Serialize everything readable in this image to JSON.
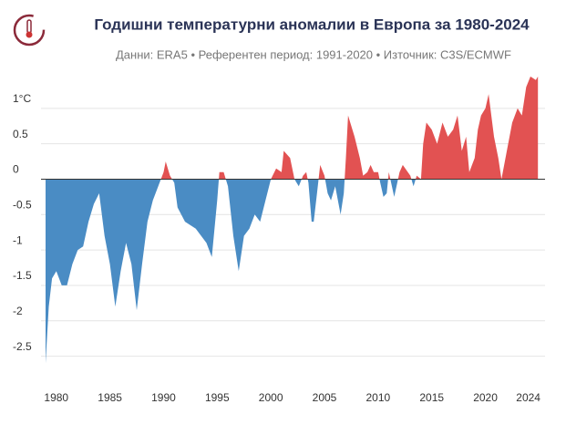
{
  "chart_data": {
    "type": "area",
    "title": "Годишни температурни аномалии в Европа за 1980-2024",
    "subtitle": "Данни: ERA5 • Референтен период: 1991-2020 • Източник: C3S/ECMWF",
    "positive_color": "#e25252",
    "negative_color": "#4a8cc4",
    "grid": true,
    "xlim": [
      1979,
      2025
    ],
    "ylim": [
      -2.75,
      1.5
    ],
    "xticks": [
      1980,
      1985,
      1990,
      1995,
      2000,
      2005,
      2010,
      2015,
      2020,
      2024
    ],
    "yticks": [
      {
        "value": 1,
        "label": "1°C"
      },
      0.5,
      0,
      -0.5,
      -1,
      -1.5,
      -2,
      -2.5
    ],
    "x": [
      1979.0,
      1979.3,
      1979.6,
      1980.0,
      1980.5,
      1981.0,
      1981.5,
      1982.0,
      1982.5,
      1983.0,
      1983.5,
      1984.0,
      1984.5,
      1985.0,
      1985.5,
      1986.0,
      1986.5,
      1987.0,
      1987.5,
      1988.0,
      1988.5,
      1989.0,
      1989.5,
      1990.0,
      1990.2,
      1990.6,
      1991.0,
      1991.3,
      1992.0,
      1993.0,
      1994.0,
      1994.5,
      1995.0,
      1995.2,
      1995.6,
      1996.0,
      1996.5,
      1997.0,
      1997.5,
      1998.0,
      1998.5,
      1999.0,
      1999.5,
      2000.0,
      2000.5,
      2001.0,
      2001.2,
      2001.8,
      2002.2,
      2002.6,
      2003.0,
      2003.3,
      2003.5,
      2003.8,
      2004.0,
      2004.3,
      2004.6,
      2005.0,
      2005.3,
      2005.6,
      2006.0,
      2006.5,
      2006.8,
      2007.0,
      2007.2,
      2007.8,
      2008.3,
      2008.6,
      2009.0,
      2009.3,
      2009.6,
      2010.0,
      2010.2,
      2010.5,
      2010.8,
      2011.0,
      2011.5,
      2012.0,
      2012.3,
      2013.0,
      2013.3,
      2013.6,
      2014.0,
      2014.2,
      2014.5,
      2015.0,
      2015.5,
      2016.0,
      2016.5,
      2017.0,
      2017.4,
      2017.8,
      2018.2,
      2018.5,
      2019.0,
      2019.3,
      2019.6,
      2020.0,
      2020.3,
      2020.8,
      2021.2,
      2021.5,
      2022.0,
      2022.5,
      2023.0,
      2023.4,
      2023.8,
      2024.2,
      2024.7,
      2024.9
    ],
    "values": [
      -2.6,
      -1.8,
      -1.4,
      -1.3,
      -1.5,
      -1.5,
      -1.2,
      -1.0,
      -0.95,
      -0.6,
      -0.35,
      -0.2,
      -0.8,
      -1.2,
      -1.8,
      -1.3,
      -0.9,
      -1.2,
      -1.85,
      -1.2,
      -0.6,
      -0.3,
      -0.1,
      0.1,
      0.25,
      0.05,
      -0.05,
      -0.4,
      -0.6,
      -0.7,
      -0.9,
      -1.1,
      -0.3,
      0.1,
      0.1,
      -0.1,
      -0.8,
      -1.3,
      -0.8,
      -0.7,
      -0.5,
      -0.6,
      -0.3,
      0.0,
      0.15,
      0.1,
      0.4,
      0.3,
      0.0,
      -0.1,
      0.05,
      0.1,
      -0.05,
      -0.6,
      -0.6,
      -0.2,
      0.2,
      0.05,
      -0.2,
      -0.3,
      -0.1,
      -0.5,
      -0.2,
      0.3,
      0.9,
      0.6,
      0.3,
      0.05,
      0.1,
      0.2,
      0.1,
      0.1,
      -0.05,
      -0.25,
      -0.2,
      0.1,
      -0.25,
      0.1,
      0.2,
      0.05,
      -0.1,
      0.05,
      0.0,
      0.5,
      0.8,
      0.7,
      0.5,
      0.8,
      0.6,
      0.7,
      0.9,
      0.4,
      0.6,
      0.1,
      0.3,
      0.7,
      0.9,
      1.0,
      1.2,
      0.6,
      0.3,
      0.0,
      0.4,
      0.8,
      1.0,
      0.9,
      1.3,
      1.45,
      1.4,
      1.45
    ]
  }
}
